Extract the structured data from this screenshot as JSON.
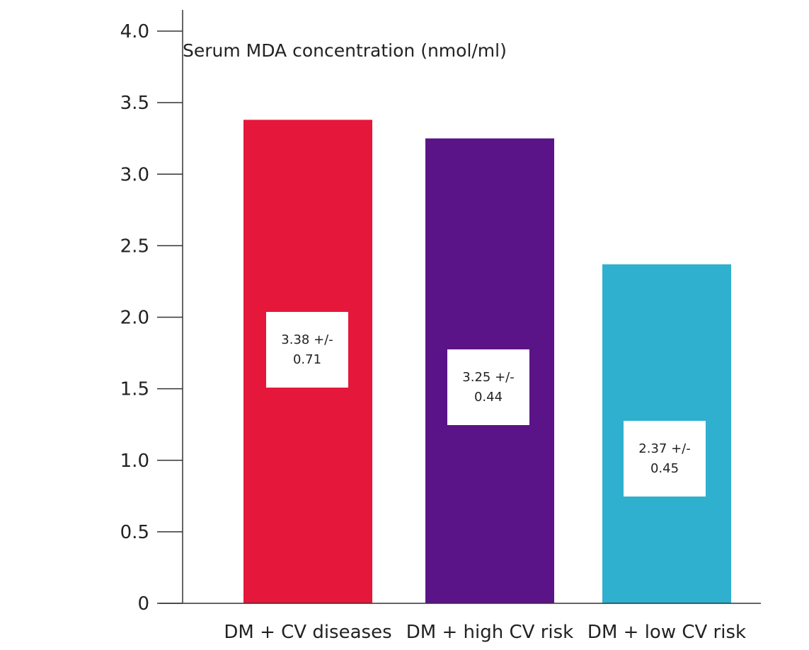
{
  "chart_data": {
    "type": "bar",
    "title": "Serum MDA concentration (nmol/ml)",
    "xlabel": "",
    "ylabel": "",
    "categories": [
      "DM + CV diseases",
      "DM + high CV risk",
      "DM + low CV risk"
    ],
    "values": [
      3.38,
      3.25,
      2.37
    ],
    "errors": [
      0.71,
      0.44,
      0.45
    ],
    "value_labels": [
      [
        "3.38 +/-",
        "0.71"
      ],
      [
        "3.25 +/-",
        "0.44"
      ],
      [
        "2.37 +/-",
        "0.45"
      ]
    ],
    "colors": [
      "#e5173a",
      "#5b1487",
      "#2fb0ce"
    ],
    "ylim": [
      0,
      4.0
    ],
    "yticks": [
      0,
      0.5,
      1.0,
      1.5,
      2.0,
      2.5,
      3.0,
      3.5,
      4.0
    ],
    "ytick_labels": [
      "0",
      "0.5",
      "1.0",
      "1.5",
      "2.0",
      "2.5",
      "3.0",
      "3.5",
      "4.0"
    ],
    "grid": false,
    "legend": "none"
  }
}
